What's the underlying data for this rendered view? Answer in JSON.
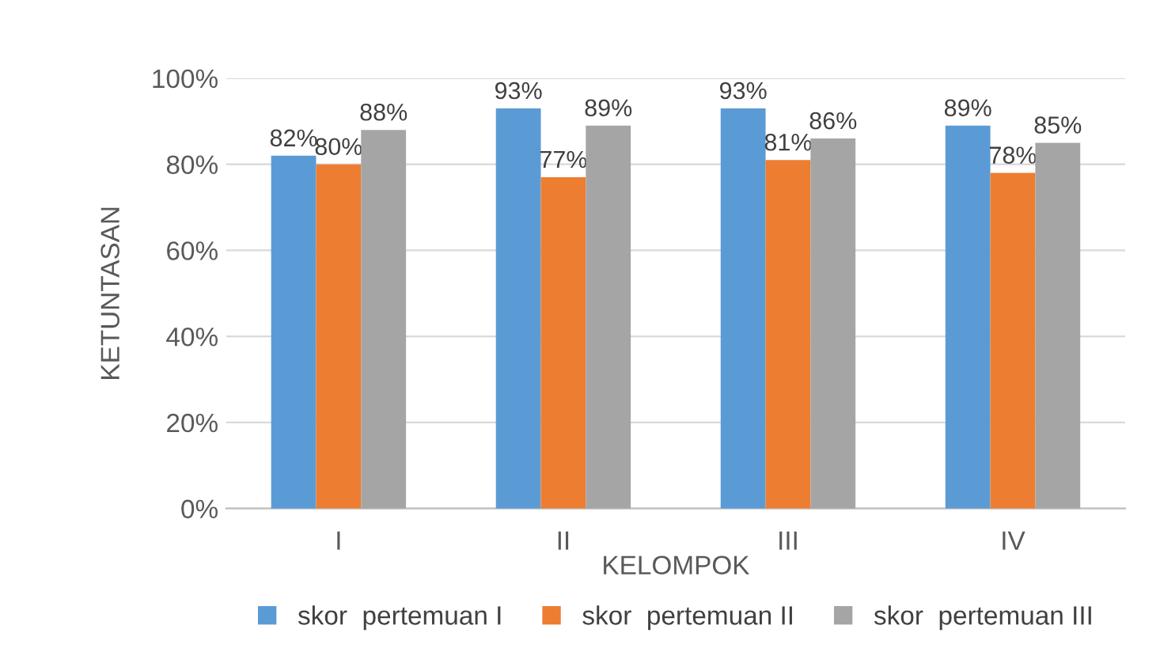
{
  "chart_data": {
    "type": "bar",
    "xlabel": "KELOMPOK",
    "ylabel": "KETUNTASAN",
    "categories": [
      "I",
      "II",
      "III",
      "IV"
    ],
    "series": [
      {
        "name": "skor  pertemuan I",
        "color": "#5b9bd5",
        "values": [
          82,
          93,
          93,
          89
        ],
        "value_labels": [
          "82%",
          "93%",
          "93%",
          "89%"
        ]
      },
      {
        "name": "skor  pertemuan II",
        "color": "#ed7d31",
        "values": [
          80,
          77,
          81,
          78
        ],
        "value_labels": [
          "80%",
          "77%",
          "81%",
          "78%"
        ]
      },
      {
        "name": "skor  pertemuan III",
        "color": "#a5a5a5",
        "values": [
          88,
          89,
          86,
          85
        ],
        "value_labels": [
          "88%",
          "89%",
          "86%",
          "85%"
        ]
      }
    ],
    "ylim": [
      0,
      100
    ],
    "yticks": [
      {
        "value": 0,
        "label": "0%"
      },
      {
        "value": 20,
        "label": "20%"
      },
      {
        "value": 40,
        "label": "40%"
      },
      {
        "value": 60,
        "label": "60%"
      },
      {
        "value": 80,
        "label": "80%"
      },
      {
        "value": 100,
        "label": "100%"
      }
    ],
    "grid": "y",
    "legend": "bottom"
  }
}
